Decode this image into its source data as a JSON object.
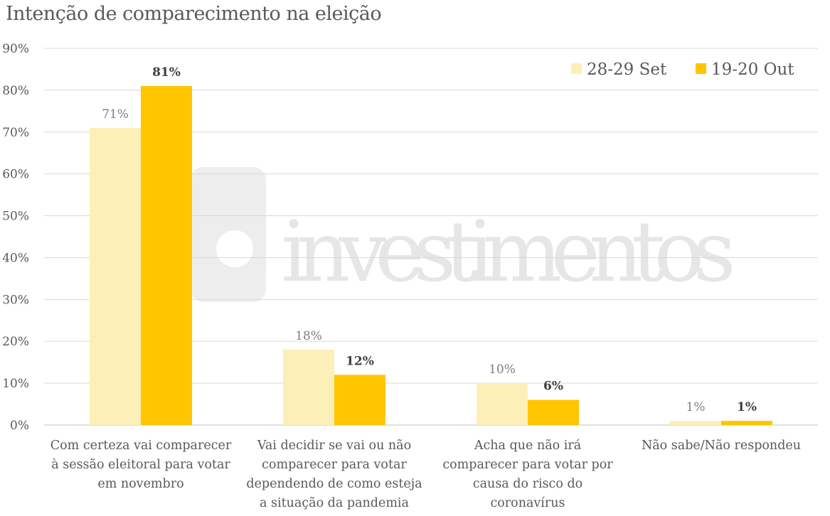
{
  "chart_data": {
    "type": "bar",
    "title": "Intenção de comparecimento na eleição",
    "xlabel": "",
    "ylabel": "",
    "ylim": [
      0,
      90
    ],
    "yticks": [
      "0%",
      "10%",
      "20%",
      "30%",
      "40%",
      "50%",
      "60%",
      "70%",
      "80%",
      "90%"
    ],
    "grid": true,
    "legend_position": "top-right",
    "categories": [
      [
        "Com certeza vai comparecer",
        "à sessão eleitoral para votar",
        "em novembro"
      ],
      [
        "Vai decidir se vai ou não",
        "comparecer para votar",
        "dependendo de como esteja",
        "a situação da pandemia"
      ],
      [
        "Acha que não irá",
        "comparecer para votar por",
        "causa do risco do",
        "coronavírus"
      ],
      [
        "Não sabe/Não respondeu"
      ]
    ],
    "series": [
      {
        "name": "28-29 Set",
        "color": "#FDEFB8",
        "values": [
          71,
          18,
          10,
          1
        ],
        "labels": [
          "71%",
          "18%",
          "10%",
          "1%"
        ]
      },
      {
        "name": "19-20 Out",
        "color": "#FFC600",
        "values": [
          81,
          12,
          6,
          1
        ],
        "labels": [
          "81%",
          "12%",
          "6%",
          "1%"
        ]
      }
    ],
    "watermark": "xp investimentos"
  }
}
